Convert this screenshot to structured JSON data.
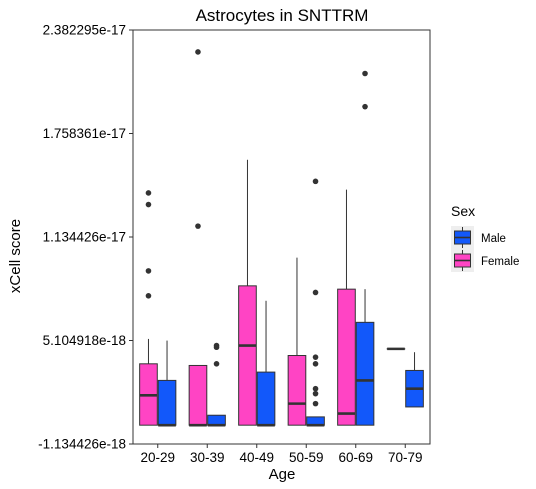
{
  "chart_data": {
    "type": "box",
    "title": "Astrocytes in SNTTRM",
    "xlabel": "Age",
    "ylabel": "xCell score",
    "y_tick_labels": [
      "-1.134426e-18",
      "5.104918e-18",
      "1.134426e-17",
      "1.758361e-17",
      "2.382295e-17"
    ],
    "y_tick_values": [
      -1.134426e-18,
      5.104918e-18,
      1.134426e-17,
      1.758361e-17,
      2.382295e-17
    ],
    "ylim": [
      -1.134426e-18,
      2.382295e-17
    ],
    "categories": [
      "20-29",
      "30-39",
      "40-49",
      "50-59",
      "60-69",
      "70-79"
    ],
    "grid": false,
    "legend": {
      "title": "Sex",
      "placement": "right",
      "entries": [
        {
          "name": "Male",
          "color": "#1258FA"
        },
        {
          "name": "Female",
          "color": "#FF44C4"
        }
      ]
    },
    "series": [
      {
        "name": "Female",
        "color": "#FF44C4",
        "boxes": [
          {
            "category": "20-29",
            "whisker_low": 0.0,
            "q1": 0.0,
            "median": 1.8e-18,
            "q3": 3.7e-18,
            "whisker_high": 5.2e-18,
            "outliers": [
              1.4e-17,
              1.33e-17,
              9.3e-18,
              7.8e-18
            ]
          },
          {
            "category": "30-39",
            "whisker_low": 0.0,
            "q1": 0.0,
            "median": 0.0,
            "q3": 3.6e-18,
            "whisker_high": 3.6e-18,
            "outliers": [
              2.25e-17,
              1.2e-17
            ]
          },
          {
            "category": "40-49",
            "whisker_low": 0.0,
            "q1": 0.0,
            "median": 4.8e-18,
            "q3": 8.4e-18,
            "whisker_high": 1.6e-17,
            "outliers": []
          },
          {
            "category": "50-59",
            "whisker_low": 0.0,
            "q1": 0.0,
            "median": 1.3e-18,
            "q3": 4.2e-18,
            "whisker_high": 1.01e-17,
            "outliers": []
          },
          {
            "category": "60-69",
            "whisker_low": 0.0,
            "q1": 0.0,
            "median": 7e-19,
            "q3": 8.2e-18,
            "whisker_high": 1.42e-17,
            "outliers": []
          },
          {
            "category": "70-79",
            "whisker_low": 4.6e-18,
            "q1": 4.6e-18,
            "median": 4.6e-18,
            "q3": 4.6e-18,
            "whisker_high": 4.6e-18,
            "outliers": []
          }
        ]
      },
      {
        "name": "Male",
        "color": "#1258FA",
        "boxes": [
          {
            "category": "20-29",
            "whisker_low": 0.0,
            "q1": 0.0,
            "median": 0.0,
            "q3": 2.7e-18,
            "whisker_high": 5.1e-18,
            "outliers": []
          },
          {
            "category": "30-39",
            "whisker_low": 0.0,
            "q1": 0.0,
            "median": 0.0,
            "q3": 6e-19,
            "whisker_high": 6e-19,
            "outliers": [
              4.8e-18,
              4.7e-18,
              3.7e-18
            ]
          },
          {
            "category": "40-49",
            "whisker_low": 0.0,
            "q1": 0.0,
            "median": 0.0,
            "q3": 3.2e-18,
            "whisker_high": 7.5e-18,
            "outliers": []
          },
          {
            "category": "50-59",
            "whisker_low": 0.0,
            "q1": 0.0,
            "median": 0.0,
            "q3": 5e-19,
            "whisker_high": 5e-19,
            "outliers": [
              1.47e-17,
              8e-18,
              4.1e-18,
              3.7e-18,
              2.2e-18,
              1.9e-18,
              1.3e-18
            ]
          },
          {
            "category": "60-69",
            "whisker_low": 0.0,
            "q1": 0.0,
            "median": 2.7e-18,
            "q3": 6.2e-18,
            "whisker_high": 8.2e-18,
            "outliers": [
              2.12e-17,
              1.92e-17
            ]
          },
          {
            "category": "70-79",
            "whisker_low": 1.1e-18,
            "q1": 1.1e-18,
            "median": 2.2e-18,
            "q3": 3.3e-18,
            "whisker_high": 4.4e-18,
            "outliers": []
          }
        ]
      }
    ]
  }
}
